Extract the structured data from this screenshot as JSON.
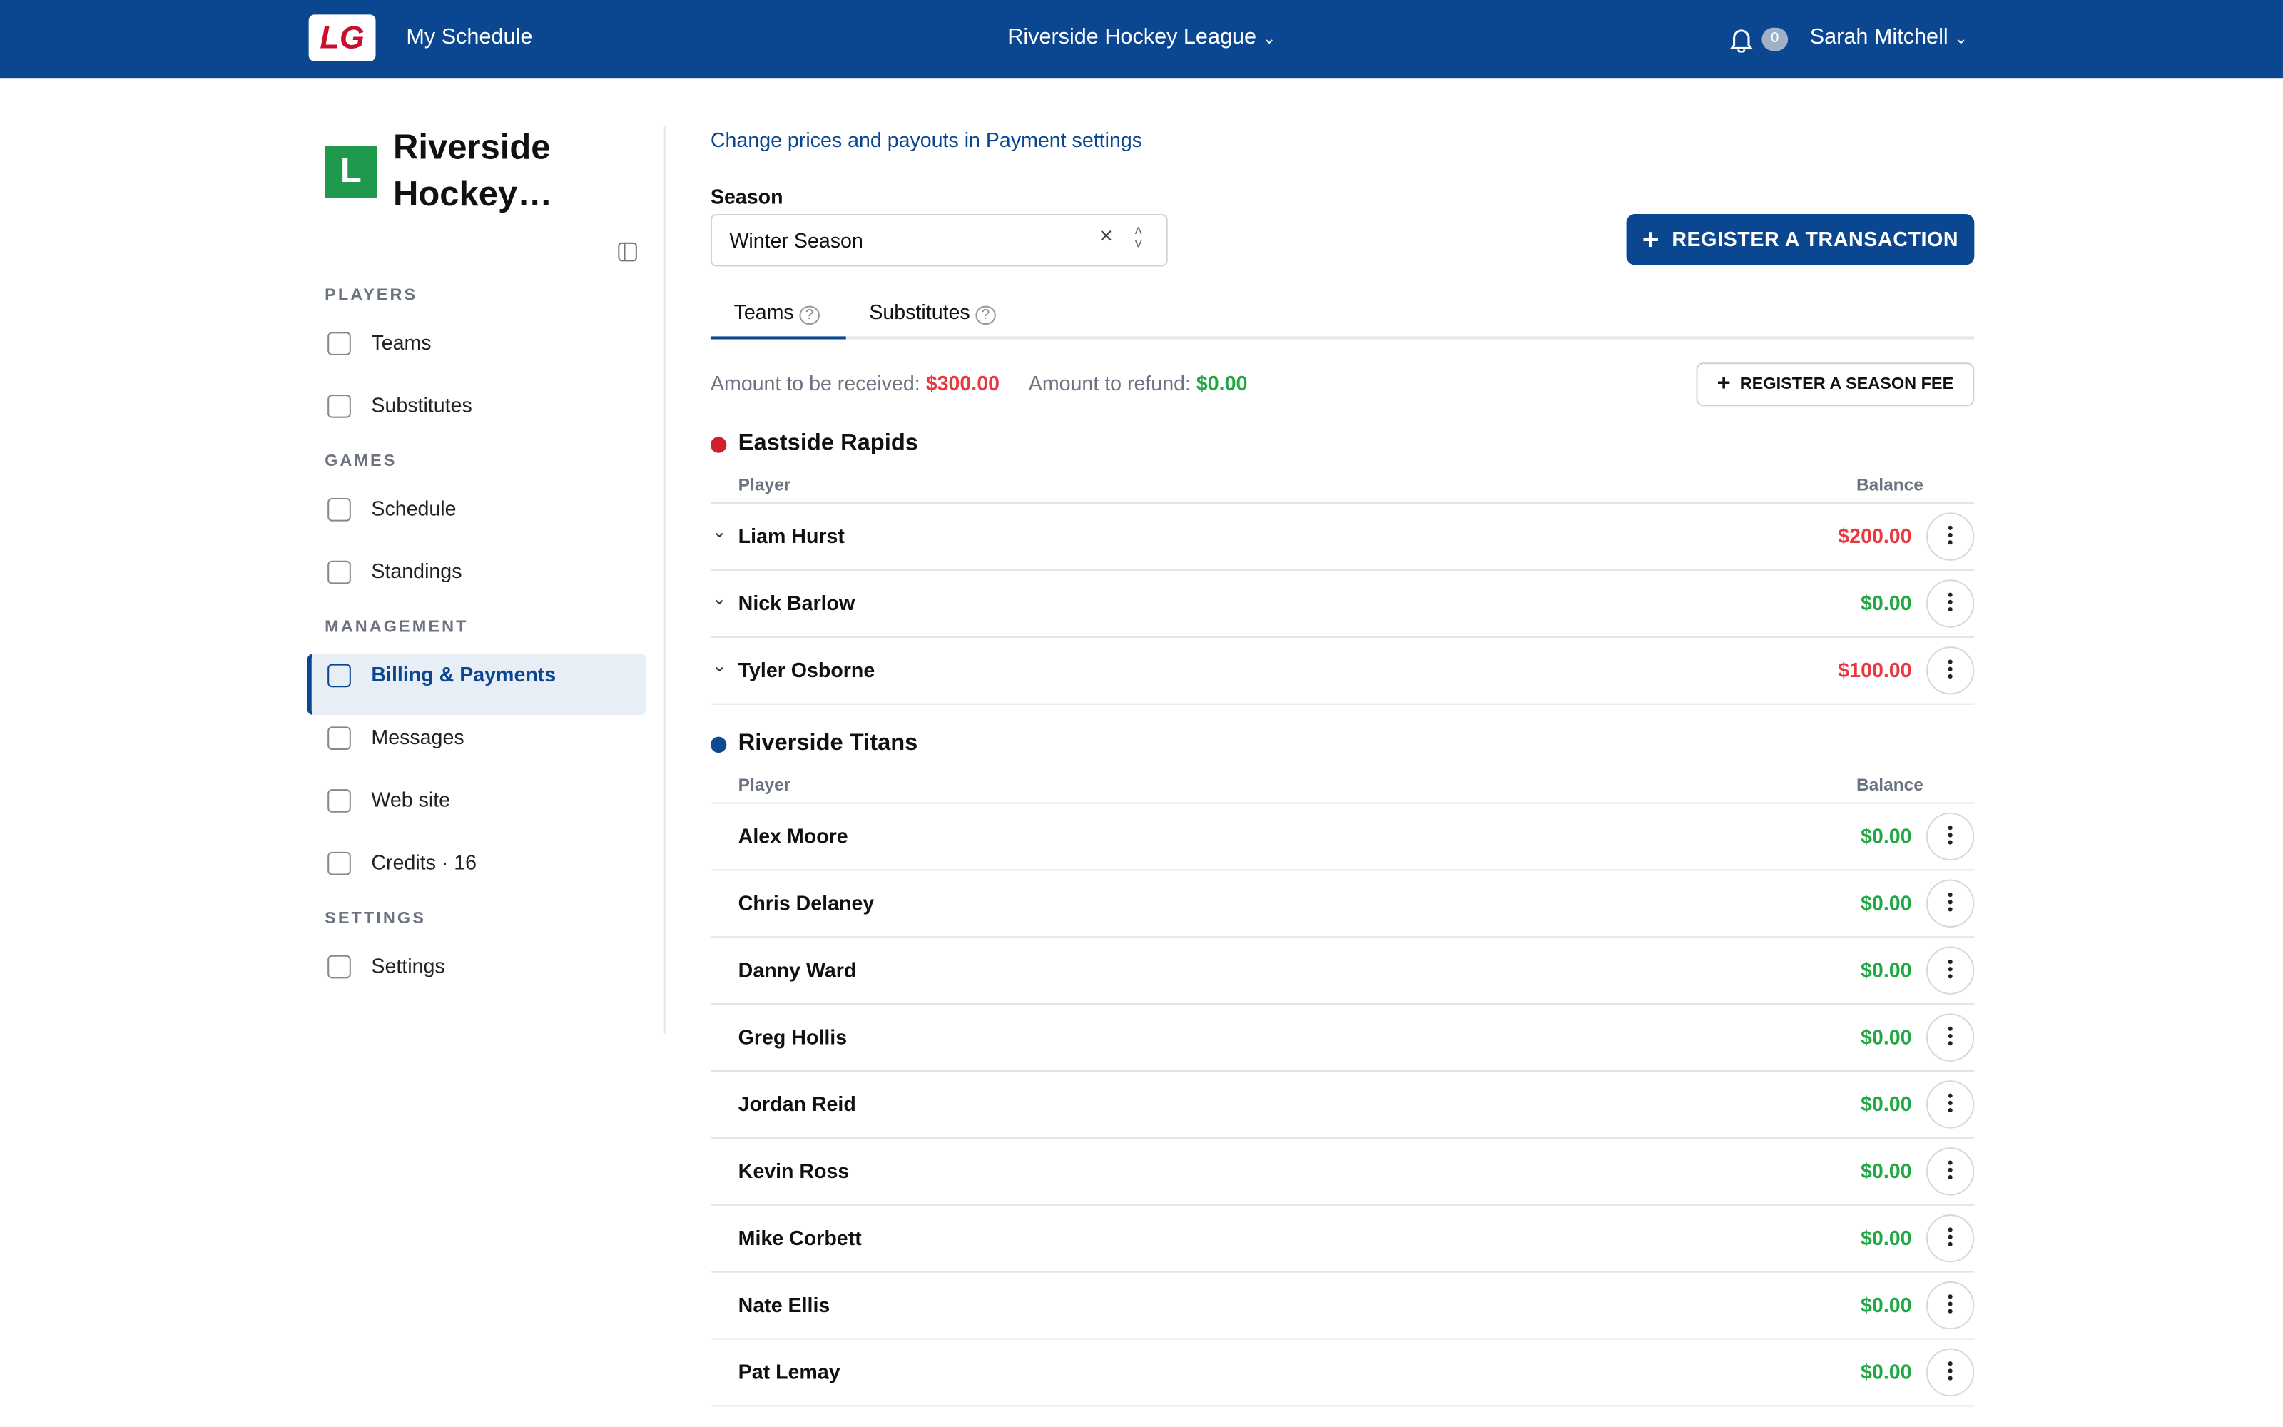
{
  "header": {
    "logo": "LG",
    "my_schedule": "My Schedule",
    "league": "Riverside Hockey League",
    "notifications": "0",
    "user": "Sarah Mitchell"
  },
  "sidebar": {
    "avatar": "L",
    "title": "Riverside Hockey…",
    "sections": [
      {
        "title": "PLAYERS",
        "items": [
          "Teams",
          "Substitutes"
        ]
      },
      {
        "title": "GAMES",
        "items": [
          "Schedule",
          "Standings"
        ]
      },
      {
        "title": "MANAGEMENT",
        "items": [
          "Billing & Payments",
          "Messages",
          "Web site",
          "Credits · 16"
        ]
      },
      {
        "title": "SETTINGS",
        "items": [
          "Settings"
        ]
      }
    ]
  },
  "content": {
    "link": "Change prices and payouts in Payment settings",
    "season_label": "Season",
    "season_value": "Winter Season",
    "register_transaction": "REGISTER A TRANSACTION",
    "tabs": [
      "Teams",
      "Substitutes"
    ],
    "summary": {
      "received_label": "Amount to be received:",
      "received": "$300.00",
      "refund_label": "Amount to refund:",
      "refund": "$0.00"
    },
    "register_fee": "REGISTER A SEASON FEE",
    "teams": [
      {
        "name": "Eastside Rapids",
        "color": "#d0202e",
        "expandable": true,
        "columns": [
          "Player",
          "Balance"
        ],
        "players": [
          {
            "name": "Liam Hurst",
            "balance": "$200.00"
          },
          {
            "name": "Nick Barlow",
            "balance": "$0.00"
          },
          {
            "name": "Tyler Osborne",
            "balance": "$100.00"
          }
        ]
      },
      {
        "name": "Riverside Titans",
        "color": "#0d4a8f",
        "expandable": false,
        "columns": [
          "Player",
          "Balance"
        ],
        "players": [
          {
            "name": "Alex Moore",
            "balance": "$0.00"
          },
          {
            "name": "Chris Delaney",
            "balance": "$0.00"
          },
          {
            "name": "Danny Ward",
            "balance": "$0.00"
          },
          {
            "name": "Greg Hollis",
            "balance": "$0.00"
          },
          {
            "name": "Jordan Reid",
            "balance": "$0.00"
          },
          {
            "name": "Kevin Ross",
            "balance": "$0.00"
          },
          {
            "name": "Mike Corbett",
            "balance": "$0.00"
          },
          {
            "name": "Nate Ellis",
            "balance": "$0.00"
          },
          {
            "name": "Pat Lemay",
            "balance": "$0.00"
          }
        ]
      }
    ]
  }
}
